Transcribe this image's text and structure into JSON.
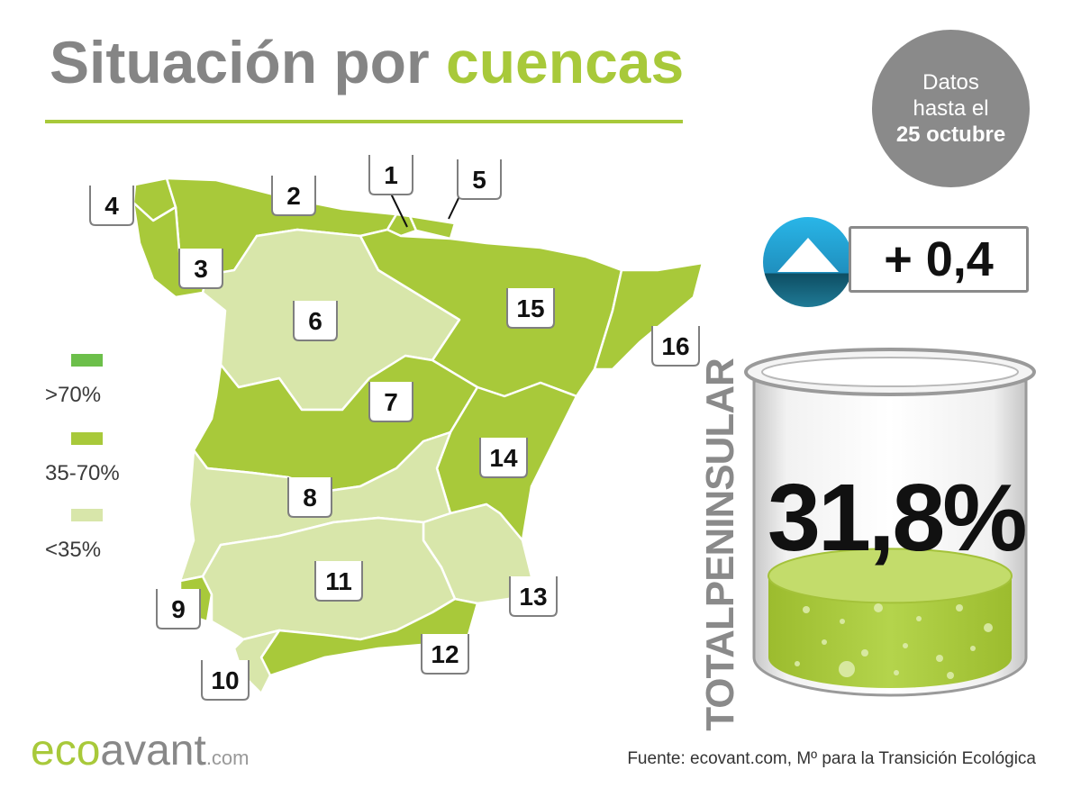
{
  "header": {
    "title_part1": "Situación por",
    "title_part2": "cuencas",
    "date_line1": "Datos",
    "date_line2": "hasta el",
    "date_line3": "25 octubre"
  },
  "legend": [
    {
      "label": ">70%",
      "color": "#6cbf4a"
    },
    {
      "label": "35-70%",
      "color": "#a8c93a"
    },
    {
      "label": "<35%",
      "color": "#d8e6aa"
    }
  ],
  "regions": [
    {
      "id": "1",
      "level": "35-70%"
    },
    {
      "id": "2",
      "level": "35-70%"
    },
    {
      "id": "3",
      "level": "35-70%"
    },
    {
      "id": "4",
      "level": "35-70%"
    },
    {
      "id": "5",
      "level": "35-70%"
    },
    {
      "id": "6",
      "level": "<35%"
    },
    {
      "id": "7",
      "level": "35-70%"
    },
    {
      "id": "8",
      "level": "<35%"
    },
    {
      "id": "9",
      "level": "35-70%"
    },
    {
      "id": "10",
      "level": "<35%"
    },
    {
      "id": "11",
      "level": "<35%"
    },
    {
      "id": "12",
      "level": "35-70%"
    },
    {
      "id": "13",
      "level": "<35%"
    },
    {
      "id": "14",
      "level": "35-70%"
    },
    {
      "id": "15",
      "level": "35-70%"
    },
    {
      "id": "16",
      "level": "35-70%"
    }
  ],
  "summary": {
    "change": "+ 0,4",
    "trend_icon": "up-arrow-icon",
    "vertical_label": "TOTALPENINSULAR",
    "total": "31,8%",
    "fill_fraction": 0.318
  },
  "footer": {
    "brand_part1": "eco",
    "brand_part2": "avant",
    "brand_part3": ".com",
    "source": "Fuente: ecovant.com, Mº para la Transición Ecológica"
  },
  "colors": {
    "accent": "#a8c93a",
    "gray": "#858585",
    "light": "#d8e6aa",
    "mid": "#a8c93a",
    "dark": "#6cbf4a",
    "trend_blue": "#29b6e8"
  }
}
